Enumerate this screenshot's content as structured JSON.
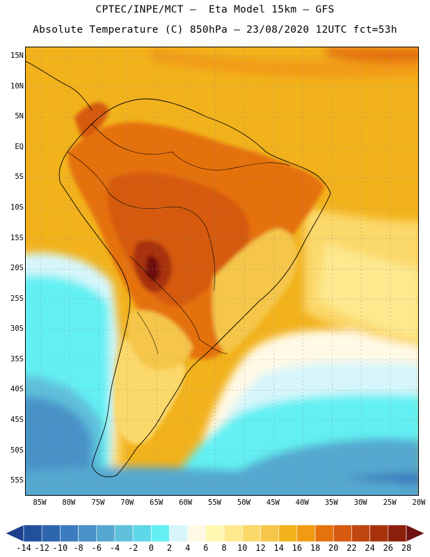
{
  "header": {
    "line1": "CPTEC/INPE/MCT –  Eta Model 15km – GFS",
    "line2": "Absolute Temperature (C) 850hPa – 23/08/2020 12UTC fct=53h"
  },
  "map": {
    "lat_labels": [
      "15N",
      "10N",
      "5N",
      "EQ",
      "5S",
      "10S",
      "15S",
      "20S",
      "25S",
      "30S",
      "35S",
      "40S",
      "45S",
      "50S",
      "55S"
    ],
    "lon_labels": [
      "85W",
      "80W",
      "75W",
      "70W",
      "65W",
      "60W",
      "55W",
      "50W",
      "45W",
      "40W",
      "35W",
      "30W",
      "25W",
      "20W"
    ],
    "lat_extent": [
      -57.5,
      16.5
    ],
    "lon_extent": [
      -87.5,
      -20
    ],
    "gridlines": true
  },
  "colorbar": {
    "labels": [
      "-14",
      "-12",
      "-10",
      "-8",
      "-6",
      "-4",
      "-2",
      "0",
      "2",
      "4",
      "6",
      "8",
      "10",
      "12",
      "14",
      "16",
      "18",
      "20",
      "22",
      "24",
      "26",
      "28"
    ],
    "colors": [
      "#1b3f8b",
      "#22509d",
      "#2d65ae",
      "#3b7bbf",
      "#4892c8",
      "#55a8cf",
      "#5fc0db",
      "#5ed7e8",
      "#64f0f3",
      "#d6f6fb",
      "#fff9e6",
      "#fff6b0",
      "#fde98e",
      "#fbd86a",
      "#f5c64a",
      "#f2b21c",
      "#f19b14",
      "#e5710f",
      "#d65a10",
      "#c0450f",
      "#a8320c",
      "#8c1e0c",
      "#6e1111"
    ]
  }
}
